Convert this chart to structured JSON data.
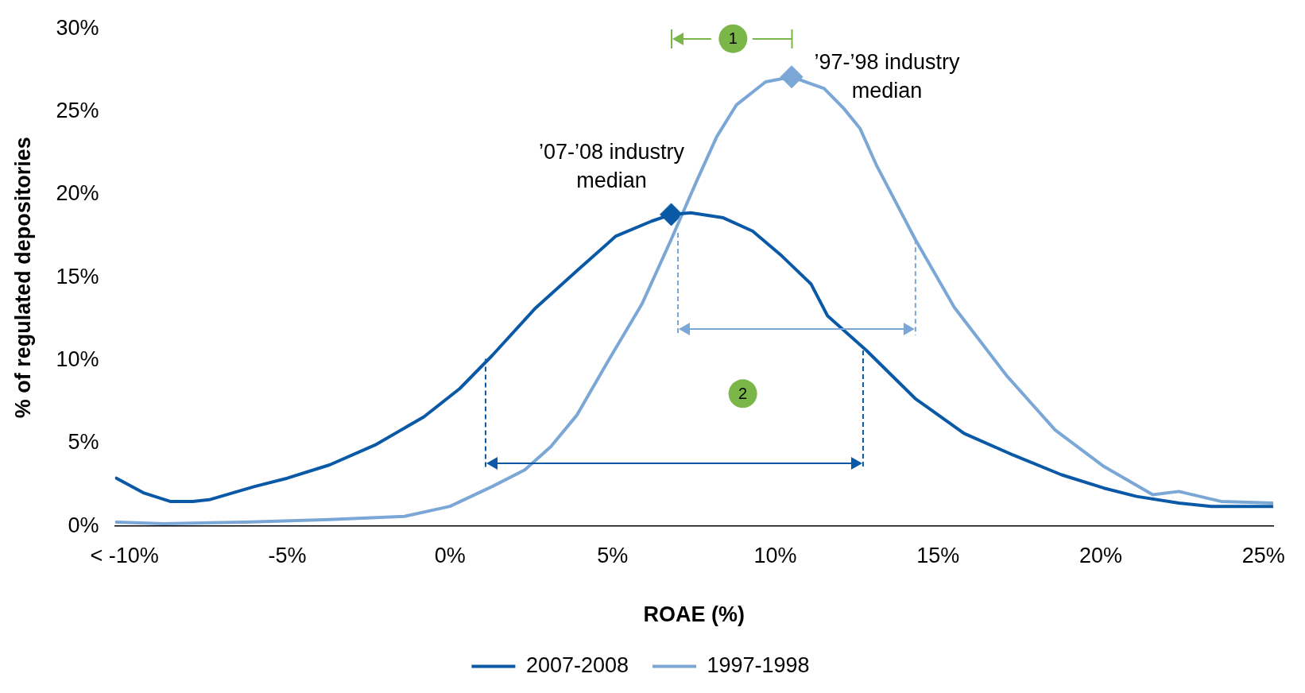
{
  "chart_data": {
    "type": "line",
    "xlabel": "ROAE (%)",
    "ylabel": "% of regulated depositories",
    "xlim": [
      -10.3,
      25.3
    ],
    "ylim": [
      0,
      30
    ],
    "xticks": [
      {
        "value": -10,
        "label": "< -10%"
      },
      {
        "value": -5,
        "label": "-5%"
      },
      {
        "value": 0,
        "label": "0%"
      },
      {
        "value": 5,
        "label": "5%"
      },
      {
        "value": 10,
        "label": "10%"
      },
      {
        "value": 15,
        "label": "15%"
      },
      {
        "value": 20,
        "label": "20%"
      },
      {
        "value": 25,
        "label": "25%"
      }
    ],
    "yticks": [
      {
        "value": 0,
        "label": "0%"
      },
      {
        "value": 5,
        "label": "5%"
      },
      {
        "value": 10,
        "label": "10%"
      },
      {
        "value": 15,
        "label": "15%"
      },
      {
        "value": 20,
        "label": "20%"
      },
      {
        "value": 25,
        "label": "25%"
      },
      {
        "value": 30,
        "label": "30%"
      }
    ],
    "grid": false,
    "legend": "bottom",
    "marker": "none",
    "line_style": "solid",
    "series": [
      {
        "name": "2007-2008",
        "color": "#0a59a6",
        "x": [
          -10.25,
          -9.4,
          -8.6,
          -7.9,
          -7.4,
          -6,
          -5,
          -3.7,
          -2.3,
          -0.8,
          0.3,
          1.3,
          2.6,
          3.9,
          5.1,
          6.2,
          6.8,
          7.4,
          8.4,
          9.3,
          10.2,
          11.1,
          11.6,
          12.8,
          14.3,
          15.8,
          17.3,
          18.8,
          20.1,
          21.1,
          22.4,
          23.4,
          25.3
        ],
        "values": [
          2.9,
          2,
          1.5,
          1.5,
          1.6,
          2.4,
          2.9,
          3.7,
          4.9,
          6.6,
          8.3,
          10.3,
          13.1,
          15.4,
          17.5,
          18.4,
          18.8,
          18.9,
          18.6,
          17.8,
          16.3,
          14.6,
          12.7,
          10.6,
          7.7,
          5.6,
          4.3,
          3.1,
          2.3,
          1.8,
          1.4,
          1.2,
          1.2
        ]
      },
      {
        "name": "1997-1998",
        "color": "#7aa7d6",
        "x": [
          -10.25,
          -8.8,
          -6.3,
          -3.7,
          -1.4,
          0,
          1.3,
          2.3,
          3.1,
          3.9,
          4.9,
          5.9,
          6.8,
          7.6,
          8.2,
          8.8,
          9.7,
          10.5,
          11.5,
          12.1,
          12.6,
          13.1,
          14.3,
          15.5,
          17.1,
          18.6,
          20.1,
          21.6,
          22.4,
          23.7,
          25.3
        ],
        "values": [
          0.25,
          0.15,
          0.25,
          0.4,
          0.6,
          1.2,
          2.4,
          3.4,
          4.8,
          6.7,
          10.1,
          13.4,
          17.3,
          20.9,
          23.5,
          25.4,
          26.8,
          27.1,
          26.4,
          25.2,
          24,
          21.8,
          17.3,
          13.2,
          9.1,
          5.8,
          3.6,
          1.9,
          2.1,
          1.5,
          1.4
        ]
      },
      {
        "type": "scatter",
        "marker": "diamond",
        "x": [
          6.8,
          10.5
        ],
        "values": [
          18.8,
          27.1
        ],
        "colors": [
          "#0a59a6",
          "#7aa7d6"
        ]
      }
    ],
    "annotations": [
      {
        "text": "’07-’08 industry median",
        "x": 6.8,
        "y": 18.8
      },
      {
        "text": "’97-’98 industry median",
        "x": 10.5,
        "y": 27.1
      },
      {
        "text": "1",
        "x": 8.7,
        "y": 29.4
      },
      {
        "text": "2",
        "x": 9,
        "y": 8
      }
    ]
  }
}
